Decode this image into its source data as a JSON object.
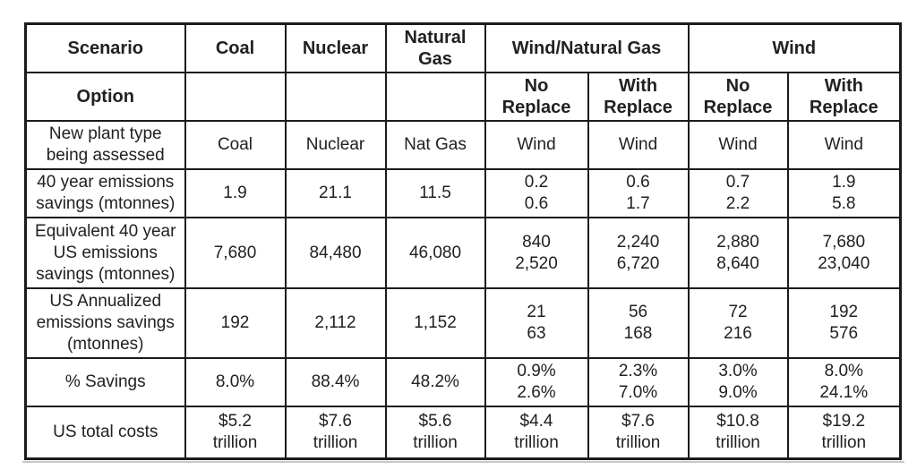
{
  "colors": {
    "border": "#1b1b1b",
    "text": "#212121",
    "page_edge_line": "#c9c9c9",
    "background": "#ffffff"
  },
  "table": {
    "row1": [
      "Scenario",
      "Coal",
      "Nuclear",
      [
        "Natural",
        "Gas"
      ],
      "Wind/Natural Gas",
      "Wind"
    ],
    "row2": {
      "label": "Option",
      "subheads": [
        [
          "No",
          "Replace"
        ],
        [
          "With",
          "Replace"
        ],
        [
          "No",
          "Replace"
        ],
        [
          "With",
          "Replace"
        ]
      ]
    },
    "rows": [
      {
        "label": "New plant type being assessed",
        "cells": [
          "Coal",
          "Nuclear",
          "Nat Gas",
          "Wind",
          "Wind",
          "Wind",
          "Wind"
        ]
      },
      {
        "label": "40 year emissions savings (mtonnes)",
        "cells": [
          "1.9",
          "21.1",
          "11.5",
          [
            "0.2",
            "0.6"
          ],
          [
            "0.6",
            "1.7"
          ],
          [
            "0.7",
            "2.2"
          ],
          [
            "1.9",
            "5.8"
          ]
        ]
      },
      {
        "label": "Equivalent 40 year US emissions savings (mtonnes)",
        "cells": [
          "7,680",
          "84,480",
          "46,080",
          [
            "840",
            "2,520"
          ],
          [
            "2,240",
            "6,720"
          ],
          [
            "2,880",
            "8,640"
          ],
          [
            "7,680",
            "23,040"
          ]
        ]
      },
      {
        "label": "US Annualized emissions savings (mtonnes)",
        "cells": [
          "192",
          "2,112",
          "1,152",
          [
            "21",
            "63"
          ],
          [
            "56",
            "168"
          ],
          [
            "72",
            "216"
          ],
          [
            "192",
            "576"
          ]
        ]
      },
      {
        "label": "% Savings",
        "cells": [
          "8.0%",
          "88.4%",
          "48.2%",
          [
            "0.9%",
            "2.6%"
          ],
          [
            "2.3%",
            "7.0%"
          ],
          [
            "3.0%",
            "9.0%"
          ],
          [
            "8.0%",
            "24.1%"
          ]
        ]
      },
      {
        "label": "US total costs",
        "cells": [
          [
            "$5.2",
            "trillion"
          ],
          [
            "$7.6",
            "trillion"
          ],
          [
            "$5.6",
            "trillion"
          ],
          [
            "$4.4",
            "trillion"
          ],
          [
            "$7.6",
            "trillion"
          ],
          [
            "$10.8",
            "trillion"
          ],
          [
            "$19.2",
            "trillion"
          ]
        ]
      }
    ]
  }
}
